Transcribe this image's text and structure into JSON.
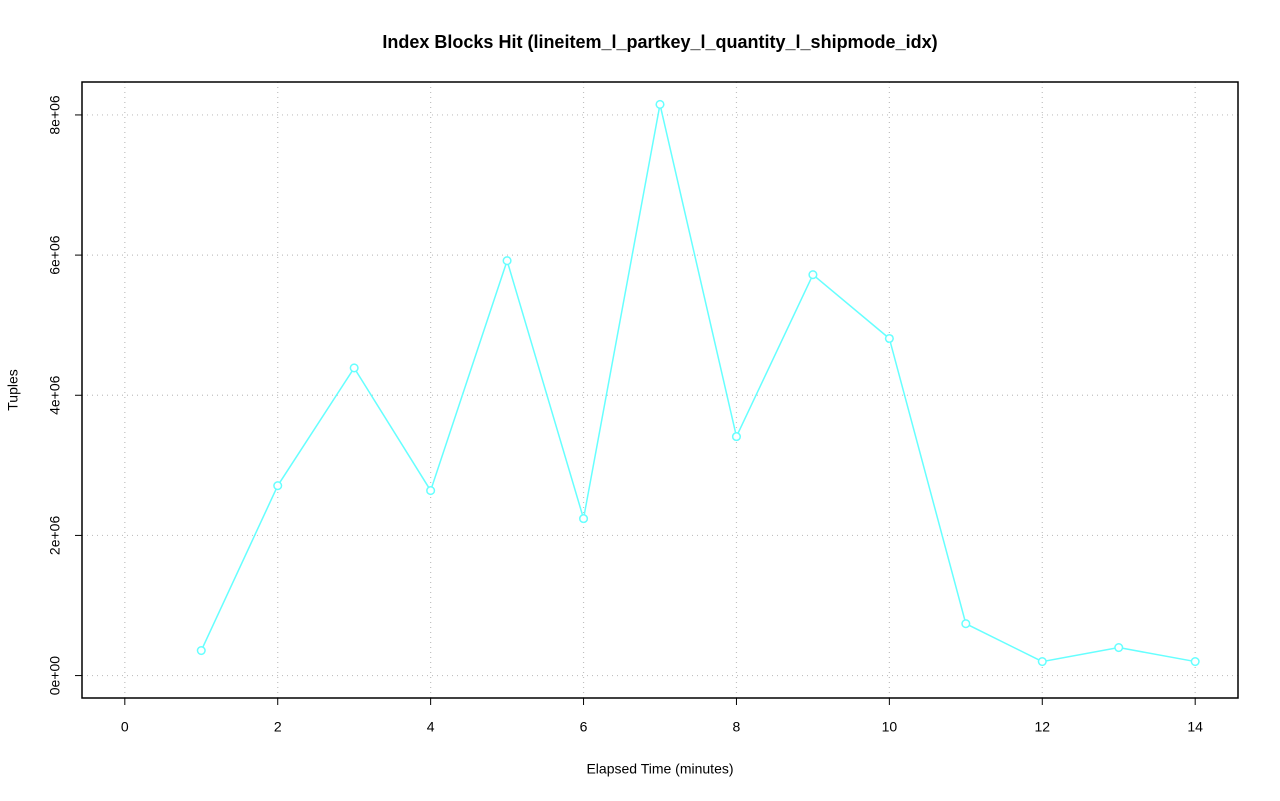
{
  "chart_data": {
    "type": "line",
    "title": "Index Blocks Hit (lineitem_l_partkey_l_quantity_l_shipmode_idx)",
    "x_label": "Elapsed Time (minutes)",
    "y_label": "Tuples",
    "x": [
      1,
      2,
      3,
      4,
      5,
      6,
      7,
      8,
      9,
      10,
      11,
      12,
      13,
      14
    ],
    "series": [
      {
        "name": "Index Blocks Hit",
        "color": "#66ffff",
        "values": [
          357000,
          2710000,
          4390000,
          2640000,
          5920000,
          2240000,
          8150000,
          3410000,
          5720000,
          4810000,
          740000,
          200000,
          400000,
          200000
        ]
      }
    ],
    "xlim": [
      -0.56,
      14.56
    ],
    "ylim": [
      -320000,
      8470000
    ],
    "xticks": [
      0,
      2,
      4,
      6,
      8,
      10,
      12,
      14
    ],
    "yticks": [
      {
        "value": 0,
        "label": "0e+00"
      },
      {
        "value": 2000000,
        "label": "2e+06"
      },
      {
        "value": 4000000,
        "label": "4e+06"
      },
      {
        "value": 6000000,
        "label": "6e+06"
      },
      {
        "value": 8000000,
        "label": "8e+06"
      }
    ],
    "grid": true
  }
}
